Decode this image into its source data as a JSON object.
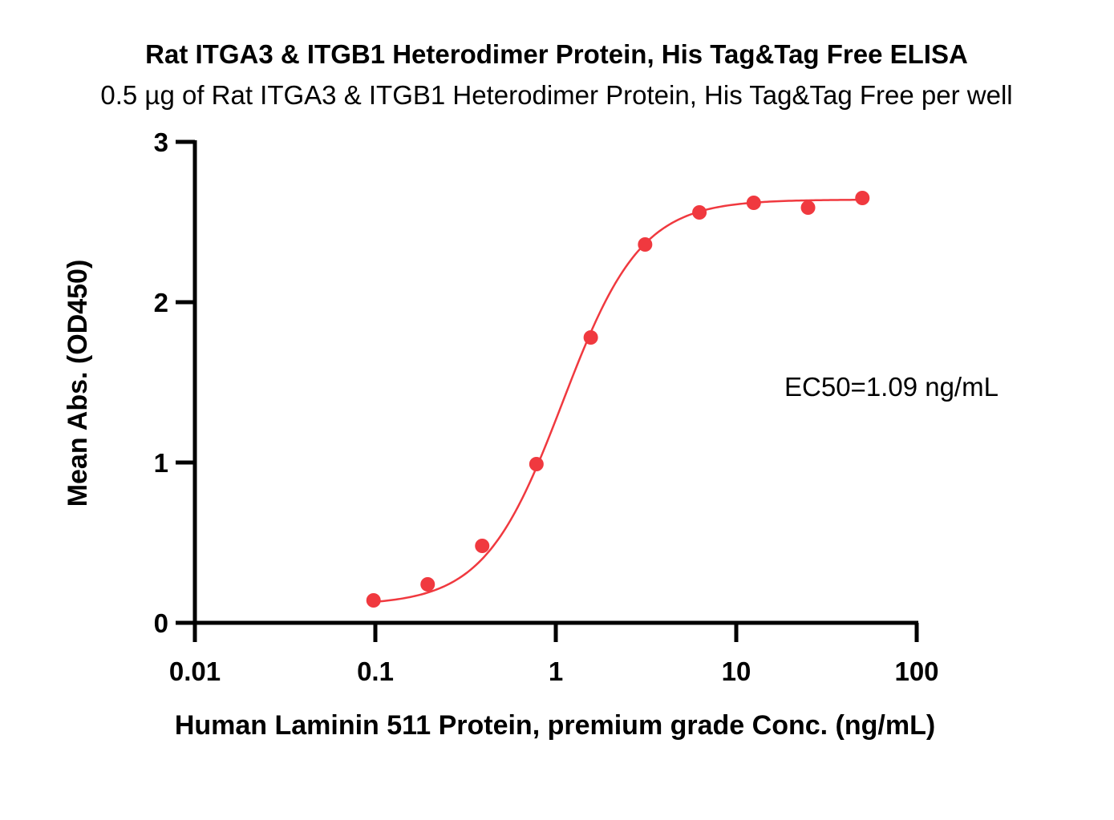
{
  "chart_data": {
    "type": "scatter",
    "title": "Rat ITGA3 & ITGB1 Heterodimer Protein, His Tag&Tag Free ELISA",
    "subtitle": "0.5 µg of Rat ITGA3 & ITGB1 Heterodimer Protein, His Tag&Tag Free per well",
    "xlabel": "Human Laminin 511 Protein, premium grade Conc. (ng/mL)",
    "ylabel": "Mean Abs. (OD450)",
    "xscale": "log",
    "xlim": [
      0.01,
      100
    ],
    "ylim": [
      0,
      3
    ],
    "x_ticks": [
      0.01,
      0.1,
      1,
      10,
      100
    ],
    "x_tick_labels": [
      "0.01",
      "0.1",
      "1",
      "10",
      "100"
    ],
    "y_ticks": [
      0,
      1,
      2,
      3
    ],
    "y_tick_labels": [
      "0",
      "1",
      "2",
      "3"
    ],
    "grid": false,
    "legend": "none",
    "series": [
      {
        "color": "#f0393f",
        "x": [
          0.0977,
          0.195,
          0.391,
          0.781,
          1.5625,
          3.125,
          6.25,
          12.5,
          25,
          50
        ],
        "y": [
          0.14,
          0.24,
          0.48,
          0.99,
          1.78,
          2.36,
          2.56,
          2.62,
          2.59,
          2.65
        ],
        "fit": {
          "model": "4PL",
          "bottom": 0.11,
          "top": 2.64,
          "ec50": 1.09,
          "hill": 2.0
        }
      }
    ],
    "annotations": [
      {
        "text": "EC50=1.09 ng/mL"
      }
    ]
  }
}
